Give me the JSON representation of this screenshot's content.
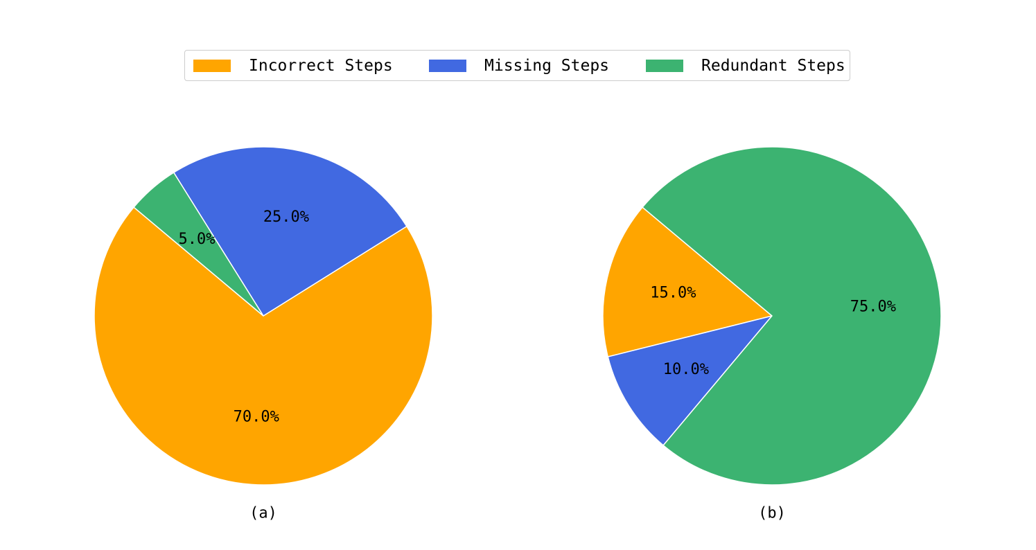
{
  "legend": {
    "items": [
      {
        "label": "Incorrect Steps",
        "color": "#FFA500"
      },
      {
        "label": "Missing Steps",
        "color": "#4169E1"
      },
      {
        "label": "Redundant Steps",
        "color": "#3CB371"
      }
    ]
  },
  "chart_data": [
    {
      "type": "pie",
      "caption": "(a)",
      "labels": [
        "Incorrect Steps",
        "Missing Steps",
        "Redundant Steps"
      ],
      "values": [
        70.0,
        25.0,
        5.0
      ],
      "value_labels": [
        "70.0%",
        "25.0%",
        "5.0%"
      ],
      "colors": [
        "#FFA500",
        "#4169E1",
        "#3CB371"
      ],
      "start_angle_deg": 140,
      "direction": "counterclockwise",
      "legend_position": "top-center"
    },
    {
      "type": "pie",
      "caption": "(b)",
      "labels": [
        "Incorrect Steps",
        "Missing Steps",
        "Redundant Steps"
      ],
      "values": [
        15.0,
        10.0,
        75.0
      ],
      "value_labels": [
        "15.0%",
        "10.0%",
        "75.0%"
      ],
      "colors": [
        "#FFA500",
        "#4169E1",
        "#3CB371"
      ],
      "start_angle_deg": 140,
      "direction": "counterclockwise",
      "legend_position": "top-center"
    }
  ]
}
